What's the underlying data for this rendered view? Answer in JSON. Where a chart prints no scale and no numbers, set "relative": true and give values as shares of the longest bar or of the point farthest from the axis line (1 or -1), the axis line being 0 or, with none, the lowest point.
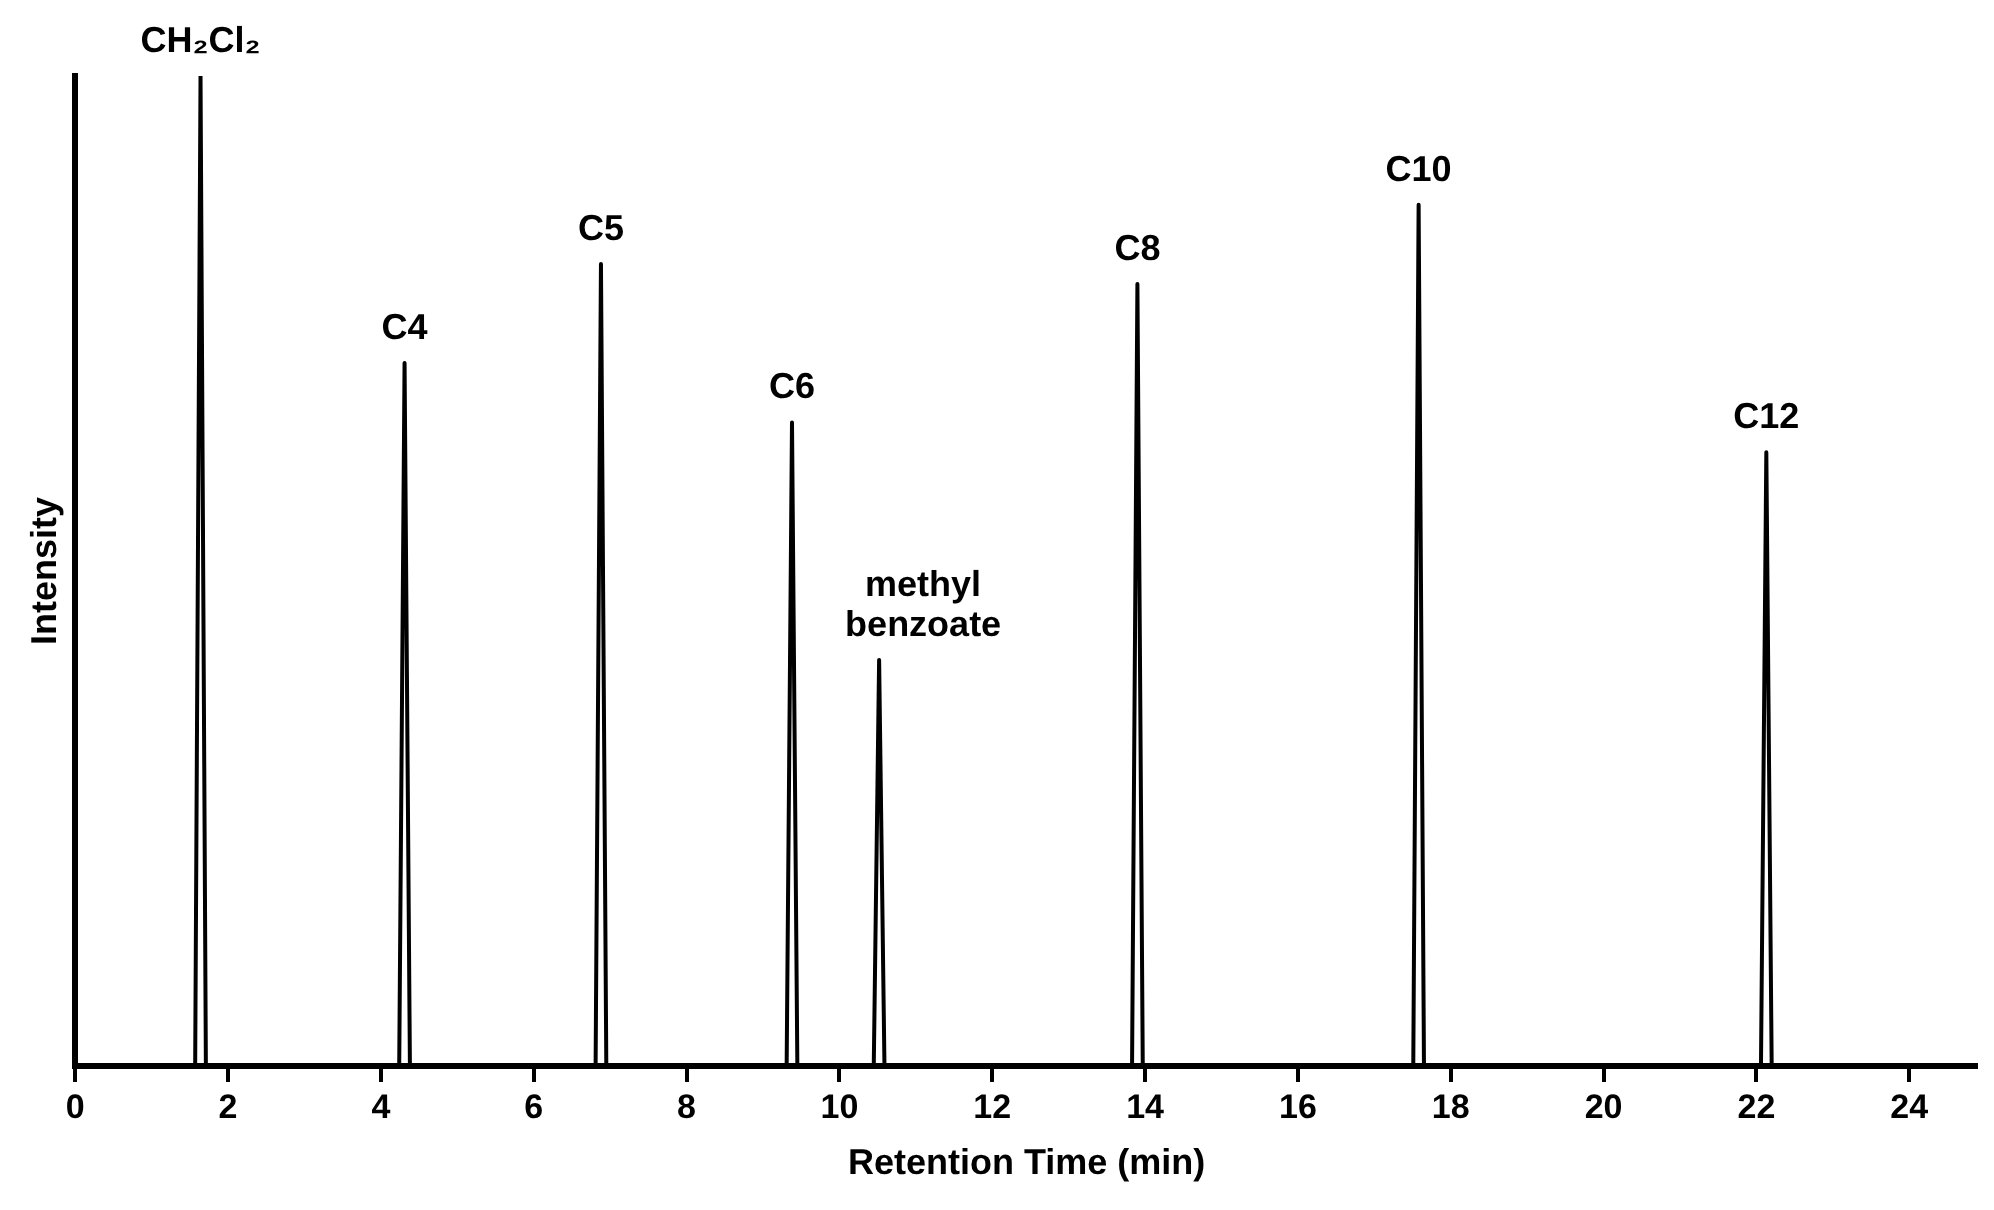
{
  "chart_data": {
    "type": "line",
    "relative": true,
    "xlabel": "Retention Time (min)",
    "ylabel": "Intensity",
    "xlim": [
      0,
      24.9
    ],
    "xticks": [
      0,
      2,
      4,
      6,
      8,
      10,
      12,
      14,
      16,
      18,
      20,
      22,
      24
    ],
    "x": [
      0,
      1.57,
      1.64,
      1.71,
      4.24,
      4.31,
      4.38,
      6.81,
      6.88,
      6.95,
      9.31,
      9.38,
      9.45,
      10.45,
      10.52,
      10.59,
      13.83,
      13.9,
      13.97,
      17.51,
      17.58,
      17.65,
      22.06,
      22.13,
      22.2,
      24.9
    ],
    "series": [
      {
        "color": "#000000",
        "values": [
          0,
          0,
          1,
          0,
          0,
          0.71,
          0,
          0,
          0.81,
          0,
          0,
          0.65,
          0,
          0,
          0.41,
          0,
          0,
          0.79,
          0,
          0,
          0.87,
          0,
          0,
          0.62,
          0,
          0
        ]
      }
    ],
    "marker": "none",
    "line_style": "solid",
    "legend": false,
    "annotations": [
      {
        "text": "CH₂Cl₂",
        "x": 1.64,
        "y": 1
      },
      {
        "text": "C4",
        "x": 4.31,
        "y": 0.71
      },
      {
        "text": "C5",
        "x": 6.88,
        "y": 0.81
      },
      {
        "text": "C6",
        "x": 9.38,
        "y": 0.65
      },
      {
        "text": "methyl benzoate",
        "x": 10.52,
        "y": 0.41
      },
      {
        "text": "C8",
        "x": 13.9,
        "y": 0.79
      },
      {
        "text": "C10",
        "x": 17.58,
        "y": 0.87
      },
      {
        "text": "C12",
        "x": 22.13,
        "y": 0.62
      }
    ]
  }
}
